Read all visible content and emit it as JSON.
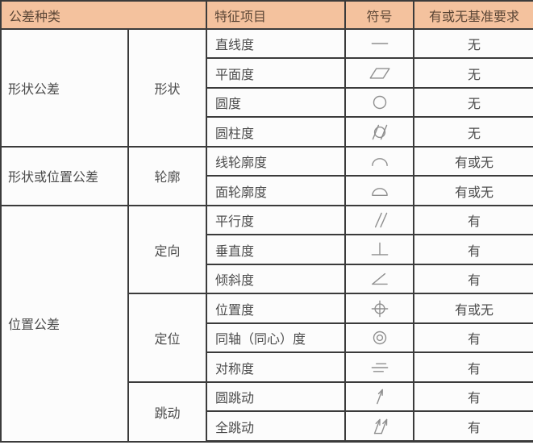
{
  "colors": {
    "header_bg": "#f4c29e",
    "header_text": "#5b4636",
    "border": "#3b3b3b",
    "text": "#4c4c4c",
    "symbol": "#8f8f8f",
    "cell_bg": "#fcfcfc"
  },
  "table": {
    "headers": {
      "category": "公差种类",
      "feature": "特征项目",
      "symbol": "符号",
      "datum": "有或无基准要求"
    },
    "groups": [
      {
        "category": "形状公差",
        "subgroups": [
          {
            "name": "形状",
            "rows": [
              {
                "feature": "直线度",
                "symbol_icon": "straightness-icon",
                "datum": "无"
              },
              {
                "feature": "平面度",
                "symbol_icon": "flatness-icon",
                "datum": "无"
              },
              {
                "feature": "圆度",
                "symbol_icon": "circularity-icon",
                "datum": "无"
              },
              {
                "feature": "圆柱度",
                "symbol_icon": "cylindricity-icon",
                "datum": "无"
              }
            ]
          }
        ]
      },
      {
        "category": "形状或位置公差",
        "subgroups": [
          {
            "name": "轮廓",
            "rows": [
              {
                "feature": "线轮廓度",
                "symbol_icon": "profile-of-line-icon",
                "datum": "有或无"
              },
              {
                "feature": "面轮廓度",
                "symbol_icon": "profile-of-surface-icon",
                "datum": "有或无"
              }
            ]
          }
        ]
      },
      {
        "category": "位置公差",
        "subgroups": [
          {
            "name": "定向",
            "rows": [
              {
                "feature": "平行度",
                "symbol_icon": "parallelism-icon",
                "datum": "有"
              },
              {
                "feature": "垂直度",
                "symbol_icon": "perpendicularity-icon",
                "datum": "有"
              },
              {
                "feature": "倾斜度",
                "symbol_icon": "angularity-icon",
                "datum": "有"
              }
            ]
          },
          {
            "name": "定位",
            "rows": [
              {
                "feature": "位置度",
                "symbol_icon": "position-icon",
                "datum": "有或无"
              },
              {
                "feature": "同轴（同心）度",
                "symbol_icon": "concentricity-icon",
                "datum": "有"
              },
              {
                "feature": "对称度",
                "symbol_icon": "symmetry-icon",
                "datum": "有"
              }
            ]
          },
          {
            "name": "跳动",
            "rows": [
              {
                "feature": "圆跳动",
                "symbol_icon": "circular-runout-icon",
                "datum": "有"
              },
              {
                "feature": "全跳动",
                "symbol_icon": "total-runout-icon",
                "datum": "有"
              }
            ]
          }
        ]
      }
    ]
  }
}
